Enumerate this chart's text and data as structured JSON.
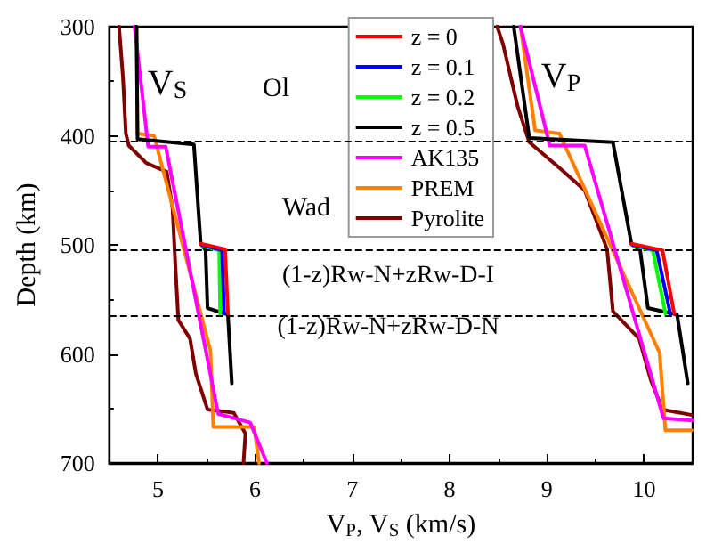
{
  "chart_data": {
    "type": "line",
    "xlabel": "V$_{P}$, V$_{S}$ (km/s)",
    "ylabel": "Depth (km)",
    "xlim": [
      4.5,
      10.5
    ],
    "xticks": [
      5,
      6,
      7,
      8,
      9,
      10
    ],
    "ylim": [
      700,
      300
    ],
    "yticks": [
      300,
      400,
      500,
      600,
      700
    ],
    "grid": false,
    "legend": "top right",
    "marker": "none",
    "line_style": "solid",
    "series": [
      {
        "name": "z = 0",
        "color": "#ff0000",
        "x": [
          5.44,
          5.69,
          5.72,
          null,
          9.87,
          10.19,
          10.31
        ],
        "values": [
          499,
          504,
          563,
          null,
          499,
          505,
          563
        ]
      },
      {
        "name": "z = 0.1",
        "color": "#0000ff",
        "x": [
          5.45,
          5.66,
          5.68,
          null,
          9.88,
          10.13,
          10.27
        ],
        "values": [
          500,
          505,
          563,
          null,
          500,
          505,
          563
        ]
      },
      {
        "name": "z = 0.2",
        "color": "#00ff00",
        "x": [
          5.46,
          5.63,
          5.64,
          null,
          9.9,
          10.09,
          10.22
        ],
        "values": [
          501,
          505,
          563,
          null,
          501,
          505,
          563
        ]
      },
      {
        "name": "z = 0.5",
        "color": "#000000",
        "x": [
          4.78,
          4.79,
          5.37,
          5.44,
          5.49,
          5.51,
          5.72,
          5.76,
          null,
          8.66,
          8.82,
          9.68,
          9.87,
          9.96,
          10.04,
          10.34,
          10.45
        ],
        "values": [
          300,
          403,
          408,
          499,
          505,
          558,
          564,
          627,
          null,
          300,
          402,
          406,
          499,
          505,
          558,
          564,
          627
        ]
      },
      {
        "name": "AK135",
        "color": "#ff00ff",
        "x": [
          4.76,
          4.9,
          5.08,
          5.62,
          5.95,
          6.12,
          null,
          8.73,
          9.03,
          9.39,
          10.2,
          10.5
        ],
        "values": [
          300,
          410,
          410,
          655,
          663,
          700,
          null,
          300,
          409,
          409,
          659,
          661
        ]
      },
      {
        "name": "PREM",
        "color": "#ff8000",
        "x": [
          4.78,
          4.79,
          4.96,
          5.54,
          5.57,
          5.99,
          6.04,
          null,
          8.73,
          8.88,
          9.13,
          10.16,
          10.22,
          10.49
        ],
        "values": [
          300,
          398,
          400,
          597,
          667,
          667,
          700,
          null,
          300,
          395,
          398,
          599,
          670,
          670
        ]
      },
      {
        "name": "Pyrolite",
        "color": "#800000",
        "x": [
          4.6,
          4.64,
          4.67,
          4.7,
          4.88,
          5.09,
          5.15,
          5.18,
          5.21,
          5.33,
          5.39,
          5.51,
          5.78,
          5.9,
          5.88,
          null,
          8.49,
          8.55,
          8.7,
          8.82,
          9.15,
          9.39,
          9.62,
          9.68,
          9.95,
          10.07,
          10.19,
          10.49
        ],
        "values": [
          300,
          346,
          398,
          409,
          425,
          433,
          466,
          520,
          569,
          586,
          618,
          651,
          654,
          673,
          700,
          null,
          300,
          316,
          373,
          406,
          431,
          450,
          504,
          561,
          586,
          624,
          651,
          656
        ]
      }
    ],
    "ref_lines": [
      {
        "axis": "y",
        "value": 405,
        "line_style": "dashed",
        "color": "#000000"
      },
      {
        "axis": "y",
        "value": 505,
        "line_style": "dashed",
        "color": "#000000"
      },
      {
        "axis": "y",
        "value": 565,
        "line_style": "dashed",
        "color": "#000000"
      }
    ],
    "annotations": [
      "V$_{S}$",
      "Ol",
      "V$_{P}$",
      "Wad",
      "(1-z)Rw-N+zRw-D-I",
      "(1-z)Rw-N+zRw-D-N"
    ]
  }
}
